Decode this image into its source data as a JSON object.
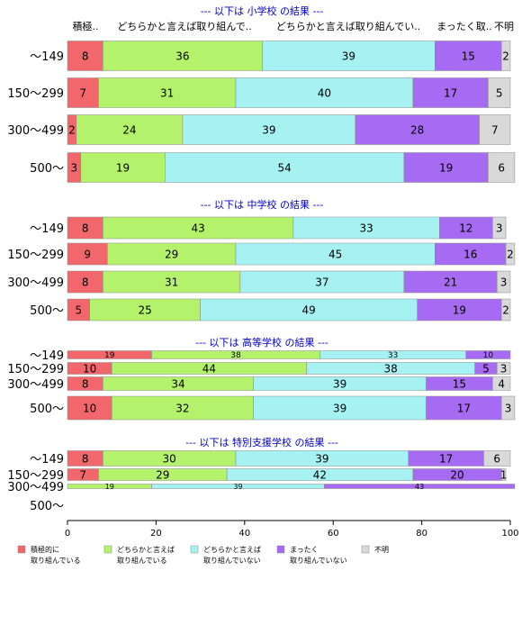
{
  "chart_data": {
    "type": "bar",
    "orientation": "horizontal-stacked",
    "xlim": [
      0,
      100
    ],
    "x_ticks": [
      "0",
      "20",
      "40",
      "60",
      "80",
      "100"
    ],
    "column_headers": [
      "積極..",
      "どちらかと言えば取り組んで..",
      "どちらかと言えば取り組んでい..",
      "まったく取..",
      "不明"
    ],
    "colors": [
      "#f2676b",
      "#b5f26b",
      "#a6f2f2",
      "#a66bf2",
      "#d9d9d9"
    ],
    "legend": {
      "position": "bottom",
      "items": [
        {
          "label": [
            "積極的に",
            "取り組んでいる"
          ],
          "color": "#f2676b"
        },
        {
          "label": [
            "どちらかと言えば",
            "取り組んでいる"
          ],
          "color": "#b5f26b"
        },
        {
          "label": [
            "どちらかと言えば",
            "取り組んでいない"
          ],
          "color": "#a6f2f2"
        },
        {
          "label": [
            "まったく",
            "取り組んでいない"
          ],
          "color": "#a66bf2"
        },
        {
          "label": [
            "不明"
          ],
          "color": "#d9d9d9"
        }
      ]
    },
    "panels": [
      {
        "title": "--- 以下は 小学校 の結果 ---",
        "rows": [
          {
            "label": "～149",
            "values": [
              8,
              36,
              39,
              15,
              2
            ]
          },
          {
            "label": "150～299",
            "values": [
              7,
              31,
              40,
              17,
              5
            ]
          },
          {
            "label": "300～499",
            "values": [
              2,
              24,
              39,
              28,
              7
            ]
          },
          {
            "label": "500～",
            "values": [
              3,
              19,
              54,
              19,
              6
            ]
          }
        ]
      },
      {
        "title": "--- 以下は 中学校 の結果 ---",
        "rows": [
          {
            "label": "～149",
            "values": [
              8,
              43,
              33,
              12,
              3
            ]
          },
          {
            "label": "150～299",
            "values": [
              9,
              29,
              45,
              16,
              2
            ]
          },
          {
            "label": "300～499",
            "values": [
              8,
              31,
              37,
              21,
              3
            ]
          },
          {
            "label": "500～",
            "values": [
              5,
              25,
              49,
              19,
              2
            ]
          }
        ]
      },
      {
        "title": "--- 以下は 高等学校 の結果 ---",
        "rows": [
          {
            "label": "～149",
            "values": [
              19,
              38,
              33,
              10,
              0
            ]
          },
          {
            "label": "150～299",
            "values": [
              10,
              44,
              38,
              5,
              3
            ]
          },
          {
            "label": "300～499",
            "values": [
              8,
              34,
              39,
              15,
              4
            ]
          },
          {
            "label": "500～",
            "values": [
              10,
              32,
              39,
              17,
              3
            ]
          }
        ]
      },
      {
        "title": "--- 以下は 特別支援学校 の結果 ---",
        "rows": [
          {
            "label": "～149",
            "values": [
              8,
              30,
              39,
              17,
              6
            ]
          },
          {
            "label": "150～299",
            "values": [
              7,
              29,
              42,
              20,
              1
            ]
          },
          {
            "label": "300～499",
            "values": [
              0,
              19,
              39,
              43,
              0
            ]
          },
          {
            "label": "500～",
            "values": []
          }
        ]
      }
    ]
  }
}
